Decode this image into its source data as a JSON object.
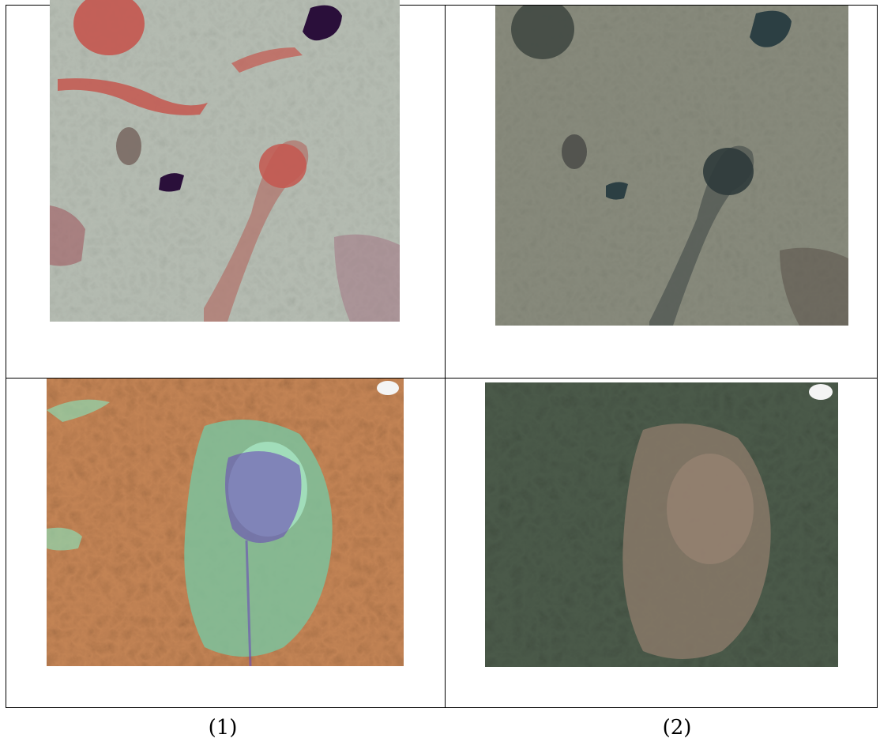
{
  "captions": {
    "left": "(1)",
    "right": "(2)"
  },
  "panels": [
    {
      "name": "false-color-plains",
      "scheme": "false-color"
    },
    {
      "name": "true-color-plains",
      "scheme": "true-color"
    },
    {
      "name": "false-color-mountains",
      "scheme": "false-color"
    },
    {
      "name": "true-color-mountains",
      "scheme": "true-color"
    }
  ],
  "colors": {
    "false_plains_base": "#9fae98",
    "false_red": "#c4574f",
    "false_water": "#2a0f3a",
    "true_plains_base": "#6f7468",
    "true_water": "#2c3f43",
    "false_mtn_base": "#a86a3d",
    "false_cyan": "#8fd8b0",
    "false_purple": "#6a4ab8",
    "true_mtn_base": "#364336",
    "true_valley": "#8c7a6a",
    "cloud": "#f4f4f4"
  }
}
